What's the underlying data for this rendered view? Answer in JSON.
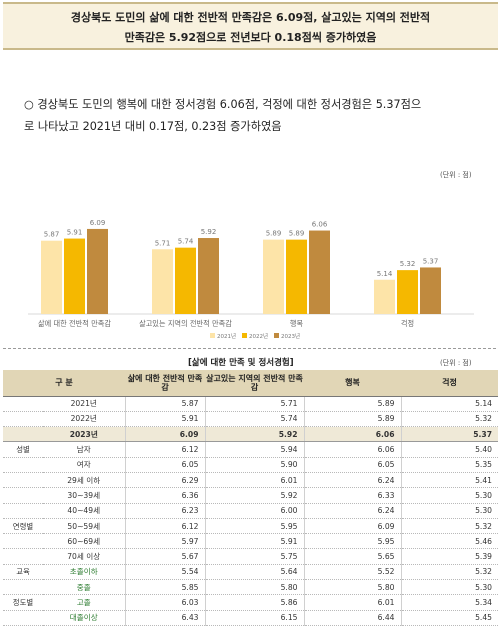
{
  "headline": {
    "line1": "경상북도 도민의 삶에 대한 전반적 만족감은 6.09점, 살고있는 지역의 전반적",
    "line2": "만족감은 5.92점으로 전년보다 0.18점씩 증가하였음"
  },
  "bullet": {
    "line1": "○ 경상북도 도민의 행복에 대한 정서경험 6.06점, 걱정에 대한 정서경험은 5.37점으",
    "line2": "로 나타났고 2021년 대비 0.17점, 0.23점 증가하였음"
  },
  "chart_unit": "(단위 : 점)",
  "chart_data": {
    "type": "bar",
    "categories": [
      "삶에 대한 전반적 만족감",
      "살고있는 지역의 전반적 만족감",
      "행복",
      "걱정"
    ],
    "series": [
      {
        "name": "2021년",
        "values": [
          5.87,
          5.71,
          5.89,
          5.14
        ],
        "color": "#fde4a8"
      },
      {
        "name": "2022년",
        "values": [
          5.91,
          5.74,
          5.89,
          5.32
        ],
        "color": "#f5b800"
      },
      {
        "name": "2023년",
        "values": [
          6.09,
          5.92,
          6.06,
          5.37
        ],
        "color": "#c08a3e"
      }
    ],
    "ylim": [
      4.5,
      6.5
    ],
    "grid": false,
    "legend_position": "bottom"
  },
  "table": {
    "title": "[삶에 대한 만족 및 정서경험]",
    "unit": "(단위 : 점)",
    "headers": [
      "구 분",
      "삶에 대한 전반적 만족감",
      "살고있는 지역의 전반적 만족감",
      "행복",
      "걱정"
    ],
    "rows": [
      {
        "group": "",
        "label": "2021년",
        "values": [
          "5.87",
          "5.71",
          "5.89",
          "5.14"
        ],
        "bold": false,
        "green": false
      },
      {
        "group": "",
        "label": "2022년",
        "values": [
          "5.91",
          "5.74",
          "5.89",
          "5.32"
        ],
        "bold": false,
        "green": false
      },
      {
        "group": "",
        "label": "2023년",
        "values": [
          "6.09",
          "5.92",
          "6.06",
          "5.37"
        ],
        "bold": true,
        "green": false
      },
      {
        "group": "성별",
        "label": "남자",
        "values": [
          "6.12",
          "5.94",
          "6.06",
          "5.40"
        ],
        "bold": false,
        "green": false
      },
      {
        "group": "",
        "label": "여자",
        "values": [
          "6.05",
          "5.90",
          "6.05",
          "5.35"
        ],
        "bold": false,
        "green": false
      },
      {
        "group": "",
        "label": "29세 이하",
        "values": [
          "6.29",
          "6.01",
          "6.24",
          "5.41"
        ],
        "bold": false,
        "green": false
      },
      {
        "group": "",
        "label": "30~39세",
        "values": [
          "6.36",
          "5.92",
          "6.33",
          "5.30"
        ],
        "bold": false,
        "green": false
      },
      {
        "group": "",
        "label": "40~49세",
        "values": [
          "6.23",
          "6.00",
          "6.24",
          "5.30"
        ],
        "bold": false,
        "green": false
      },
      {
        "group": "연령별",
        "label": "50~59세",
        "values": [
          "6.12",
          "5.95",
          "6.09",
          "5.32"
        ],
        "bold": false,
        "green": false
      },
      {
        "group": "",
        "label": "60~69세",
        "values": [
          "5.97",
          "5.91",
          "5.95",
          "5.46"
        ],
        "bold": false,
        "green": false
      },
      {
        "group": "",
        "label": "70세 이상",
        "values": [
          "5.67",
          "5.75",
          "5.65",
          "5.39"
        ],
        "bold": false,
        "green": false
      },
      {
        "group": "교육",
        "label": "초졸이하",
        "values": [
          "5.54",
          "5.64",
          "5.52",
          "5.32"
        ],
        "bold": false,
        "green": true
      },
      {
        "group": "",
        "label": "중졸",
        "values": [
          "5.85",
          "5.80",
          "5.80",
          "5.30"
        ],
        "bold": false,
        "green": true
      },
      {
        "group": "정도별",
        "label": "고졸",
        "values": [
          "6.03",
          "5.86",
          "6.01",
          "5.34"
        ],
        "bold": false,
        "green": true
      },
      {
        "group": "",
        "label": "대졸이상",
        "values": [
          "6.43",
          "6.15",
          "6.44",
          "5.45"
        ],
        "bold": false,
        "green": true
      }
    ]
  }
}
